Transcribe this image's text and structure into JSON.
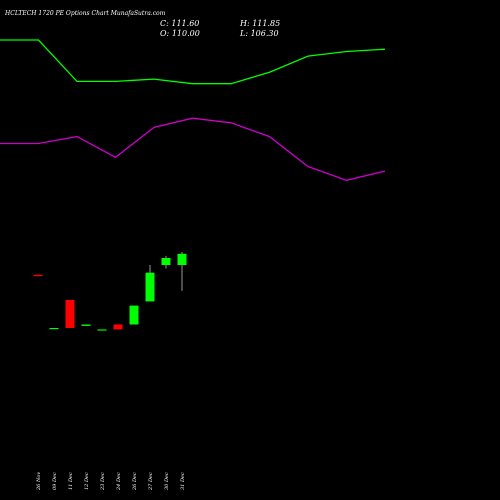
{
  "header": {
    "title": "HCLTECH 1720 PE Options Chart MunafaSutra.com",
    "open_label": "O:",
    "open_value": "110.00",
    "close_label": "C:",
    "close_value": "111.60",
    "high_label": "H:",
    "high_value": "111.85",
    "low_label": "L:",
    "low_value": "106.30"
  },
  "colors": {
    "background": "#000000",
    "up": "#00ff00",
    "down": "#ff0000",
    "upper_line": "#00ff00",
    "lower_line": "#cc00cc",
    "text": "#ffffff"
  },
  "chart_data": {
    "type": "candlestick",
    "categories": [
      "26 Nov",
      "09 Dec",
      "11 Dec",
      "12 Dec",
      "23 Dec",
      "24 Dec",
      "26 Dec",
      "27 Dec",
      "30 Dec",
      "31 Dec"
    ],
    "candles": [
      {
        "date": "26 Nov",
        "open": 108.6,
        "high": 108.6,
        "low": 108.4,
        "close": 108.4
      },
      {
        "date": "09 Dec",
        "open": 101.0,
        "high": 101.0,
        "low": 101.0,
        "close": 101.0
      },
      {
        "date": "11 Dec",
        "open": 105.0,
        "high": 105.0,
        "low": 101.0,
        "close": 101.0
      },
      {
        "date": "12 Dec",
        "open": 101.3,
        "high": 101.5,
        "low": 101.3,
        "close": 101.5
      },
      {
        "date": "23 Dec",
        "open": 100.8,
        "high": 100.8,
        "low": 100.8,
        "close": 100.8
      },
      {
        "date": "24 Dec",
        "open": 101.5,
        "high": 101.5,
        "low": 100.8,
        "close": 100.8
      },
      {
        "date": "26 Dec",
        "open": 101.5,
        "high": 104.2,
        "low": 101.5,
        "close": 104.2
      },
      {
        "date": "27 Dec",
        "open": 104.8,
        "high": 110.0,
        "low": 104.8,
        "close": 108.9
      },
      {
        "date": "30 Dec",
        "open": 110.0,
        "high": 111.3,
        "low": 109.5,
        "close": 111.0
      },
      {
        "date": "31 Dec",
        "open": 110.0,
        "high": 111.85,
        "low": 106.3,
        "close": 111.6
      }
    ],
    "upper_line": [
      100,
      100,
      82,
      82,
      83,
      81,
      81,
      86,
      93,
      95,
      96
    ],
    "lower_line": [
      55,
      55,
      58,
      49,
      62,
      66,
      64,
      58,
      45,
      39,
      43
    ],
    "line_ylim": [
      0,
      100
    ],
    "line_points": 11
  }
}
